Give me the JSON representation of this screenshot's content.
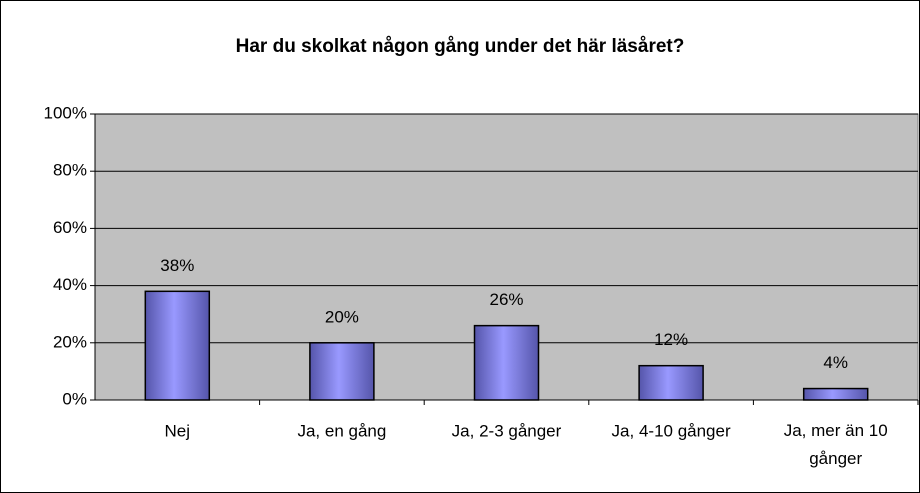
{
  "chart_data": {
    "type": "bar",
    "title": "Har du skolkat någon gång under det här läsåret?",
    "categories": [
      "Nej",
      "Ja, en gång",
      "Ja, 2-3 gånger",
      "Ja, 4-10 gånger",
      "Ja, mer än 10 gånger"
    ],
    "values": [
      38,
      20,
      26,
      12,
      4
    ],
    "value_labels": [
      "38%",
      "20%",
      "26%",
      "12%",
      "4%"
    ],
    "color": "#9999ff",
    "ylim": [
      0,
      100
    ],
    "yticks": [
      {
        "value": 0,
        "label": "0%"
      },
      {
        "value": 20,
        "label": "20%"
      },
      {
        "value": 40,
        "label": "40%"
      },
      {
        "value": 60,
        "label": "60%"
      },
      {
        "value": 80,
        "label": "80%"
      },
      {
        "value": 100,
        "label": "100%"
      }
    ],
    "grid": true
  }
}
